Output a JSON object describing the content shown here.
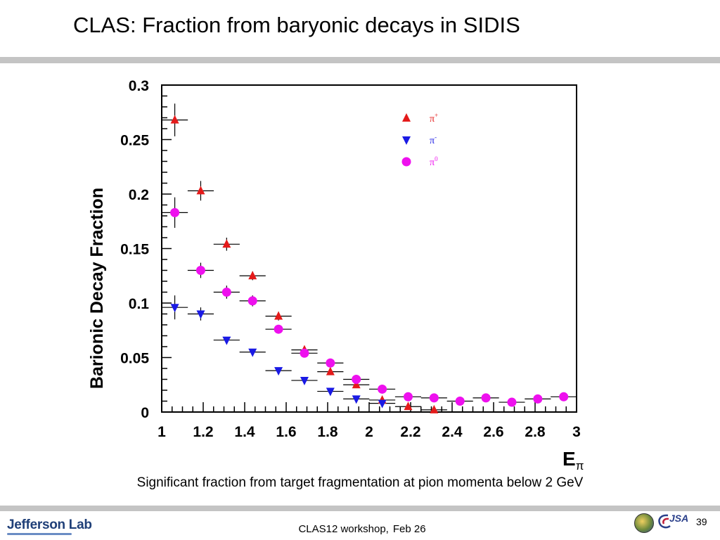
{
  "slide": {
    "title": "CLAS: Fraction from baryonic decays in SIDIS",
    "caption": "Significant fraction from target fragmentation at pion momenta below 2 GeV"
  },
  "footer": {
    "logo_text": "Jefferson Lab",
    "event": "CLAS12 workshop,",
    "date": "Feb 26",
    "jsa_logo": "JSA",
    "page_number": "39"
  },
  "chart_data": {
    "type": "scatter",
    "ylabel": "Barionic Decay Fraction",
    "xlabel": "E",
    "xlabel_sub": "π",
    "xlim": [
      1,
      3
    ],
    "ylim": [
      0,
      0.3
    ],
    "x_ticks": [
      "1",
      "1.2",
      "1.4",
      "1.6",
      "1.8",
      "2",
      "2.2",
      "2.4",
      "2.6",
      "2.8",
      "3"
    ],
    "y_ticks": [
      "0",
      "0.05",
      "0.1",
      "0.15",
      "0.2",
      "0.25",
      "0.3"
    ],
    "legend_placement": "top-right",
    "series": [
      {
        "name": "π⁺",
        "legend_base": "π",
        "legend_sup": "+",
        "color": "#e41a1a",
        "marker": "triangle-up",
        "points": [
          {
            "x": 1.063,
            "y": 0.268,
            "xerr": 0.063,
            "yerr": 0.015
          },
          {
            "x": 1.188,
            "y": 0.203,
            "xerr": 0.063,
            "yerr": 0.009
          },
          {
            "x": 1.313,
            "y": 0.154,
            "xerr": 0.063,
            "yerr": 0.006
          },
          {
            "x": 1.438,
            "y": 0.125,
            "xerr": 0.063,
            "yerr": 0.004
          },
          {
            "x": 1.563,
            "y": 0.088,
            "xerr": 0.063,
            "yerr": 0.004
          },
          {
            "x": 1.688,
            "y": 0.057,
            "xerr": 0.063,
            "yerr": 0.003
          },
          {
            "x": 1.813,
            "y": 0.037,
            "xerr": 0.063,
            "yerr": 0.003
          },
          {
            "x": 1.938,
            "y": 0.025,
            "xerr": 0.063,
            "yerr": 0.003
          },
          {
            "x": 2.063,
            "y": 0.011,
            "xerr": 0.063,
            "yerr": 0.002
          },
          {
            "x": 2.188,
            "y": 0.005,
            "xerr": 0.063,
            "yerr": 0.002
          },
          {
            "x": 2.313,
            "y": 0.002,
            "xerr": 0.063,
            "yerr": 0.001
          }
        ]
      },
      {
        "name": "π⁻",
        "legend_base": "π",
        "legend_sup": "-",
        "color": "#1a1ae4",
        "marker": "triangle-down",
        "points": [
          {
            "x": 1.063,
            "y": 0.096,
            "xerr": 0.063,
            "yerr": 0.011
          },
          {
            "x": 1.188,
            "y": 0.09,
            "xerr": 0.063,
            "yerr": 0.006
          },
          {
            "x": 1.313,
            "y": 0.066,
            "xerr": 0.063,
            "yerr": 0.003
          },
          {
            "x": 1.438,
            "y": 0.055,
            "xerr": 0.063,
            "yerr": 0.003
          },
          {
            "x": 1.563,
            "y": 0.038,
            "xerr": 0.063,
            "yerr": 0.002
          },
          {
            "x": 1.688,
            "y": 0.029,
            "xerr": 0.063,
            "yerr": 0.002
          },
          {
            "x": 1.813,
            "y": 0.019,
            "xerr": 0.063,
            "yerr": 0.002
          },
          {
            "x": 1.938,
            "y": 0.012,
            "xerr": 0.063,
            "yerr": 0.002
          },
          {
            "x": 2.063,
            "y": 0.008,
            "xerr": 0.063,
            "yerr": 0.002
          }
        ]
      },
      {
        "name": "π⁰",
        "legend_base": "π",
        "legend_sup": "0",
        "color": "#ee10ee",
        "marker": "circle",
        "points": [
          {
            "x": 1.063,
            "y": 0.183,
            "xerr": 0.063,
            "yerr": 0.014
          },
          {
            "x": 1.188,
            "y": 0.13,
            "xerr": 0.063,
            "yerr": 0.007
          },
          {
            "x": 1.313,
            "y": 0.11,
            "xerr": 0.063,
            "yerr": 0.006
          },
          {
            "x": 1.438,
            "y": 0.102,
            "xerr": 0.063,
            "yerr": 0.005
          },
          {
            "x": 1.563,
            "y": 0.076,
            "xerr": 0.063,
            "yerr": 0.004
          },
          {
            "x": 1.688,
            "y": 0.054,
            "xerr": 0.063,
            "yerr": 0.003
          },
          {
            "x": 1.813,
            "y": 0.045,
            "xerr": 0.063,
            "yerr": 0.003
          },
          {
            "x": 1.938,
            "y": 0.03,
            "xerr": 0.063,
            "yerr": 0.003
          },
          {
            "x": 2.063,
            "y": 0.021,
            "xerr": 0.063,
            "yerr": 0.002
          },
          {
            "x": 2.188,
            "y": 0.014,
            "xerr": 0.063,
            "yerr": 0.002
          },
          {
            "x": 2.313,
            "y": 0.013,
            "xerr": 0.063,
            "yerr": 0.002
          },
          {
            "x": 2.438,
            "y": 0.01,
            "xerr": 0.063,
            "yerr": 0.002
          },
          {
            "x": 2.563,
            "y": 0.013,
            "xerr": 0.063,
            "yerr": 0.002
          },
          {
            "x": 2.688,
            "y": 0.009,
            "xerr": 0.063,
            "yerr": 0.002
          },
          {
            "x": 2.813,
            "y": 0.012,
            "xerr": 0.063,
            "yerr": 0.002
          },
          {
            "x": 2.938,
            "y": 0.014,
            "xerr": 0.063,
            "yerr": 0.002
          }
        ]
      }
    ]
  }
}
